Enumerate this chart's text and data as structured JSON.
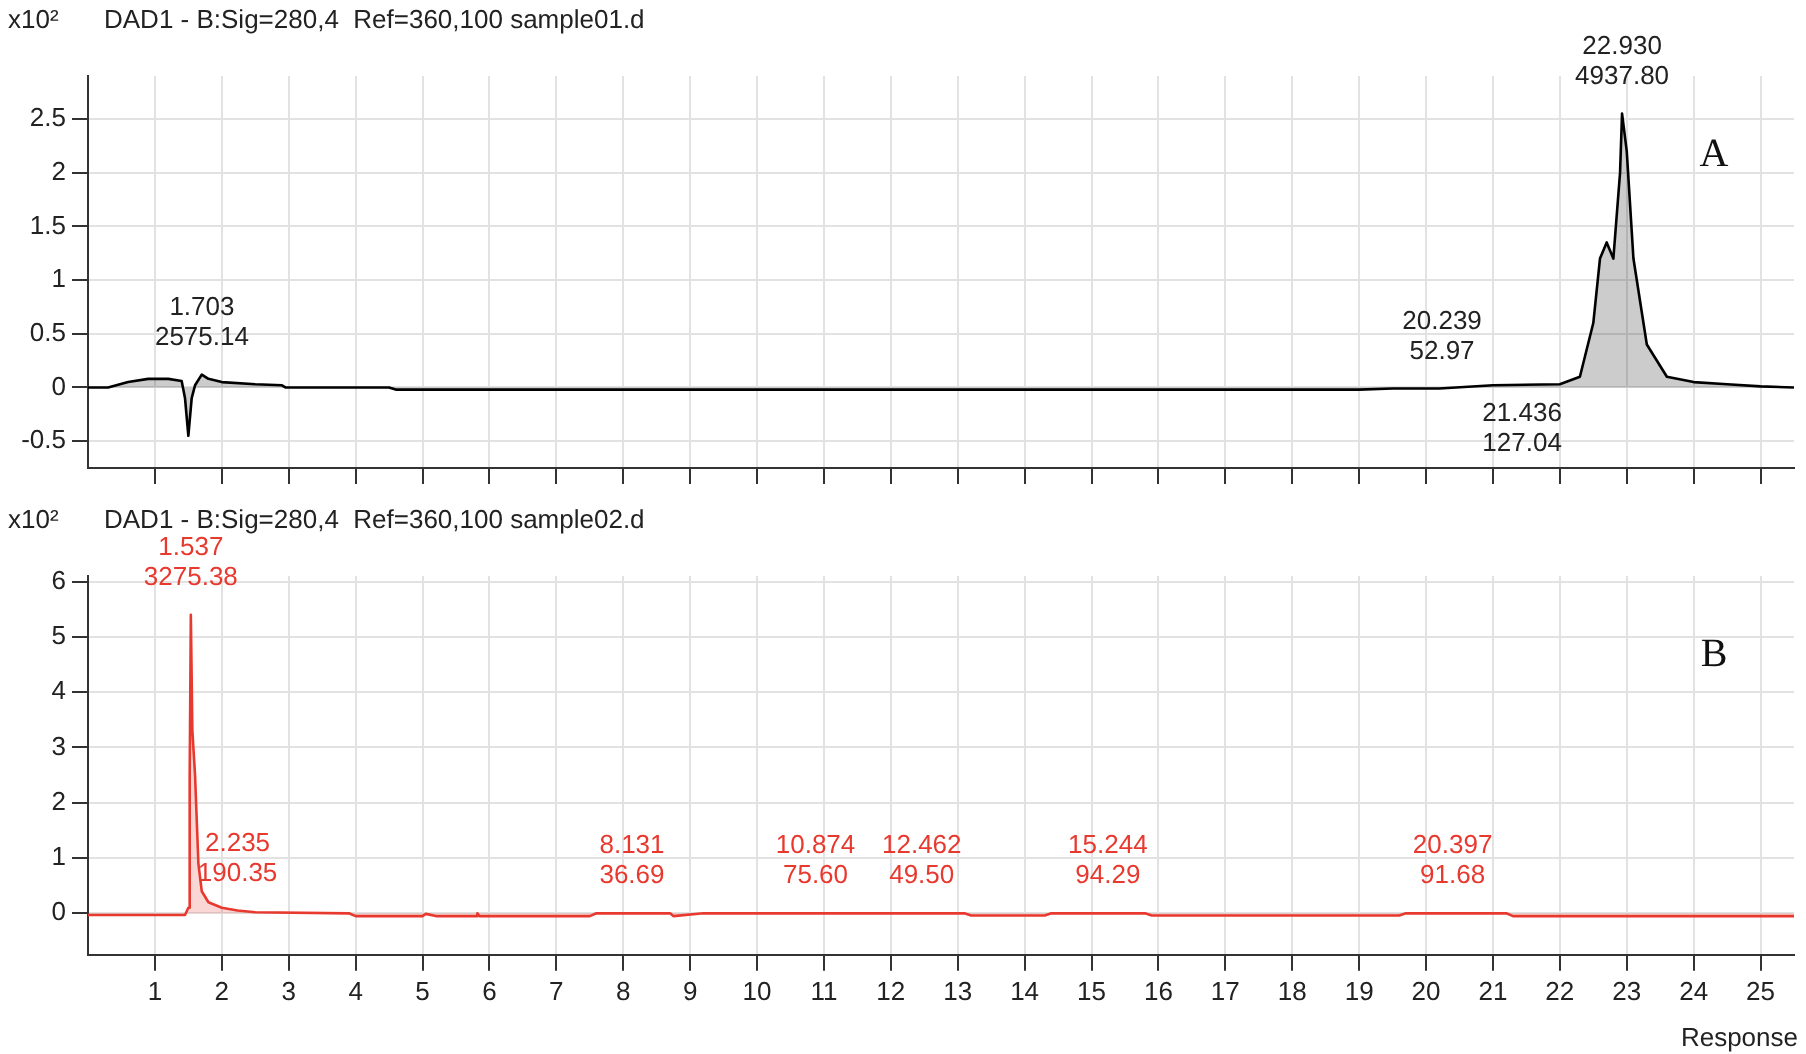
{
  "chart_data": [
    {
      "type": "area",
      "title": "DAD1 - B:Sig=280,4  Ref=360,100 sample01.d",
      "ylabel": "x10²",
      "xlim": [
        0,
        25.5
      ],
      "ylim": [
        -0.75,
        2.9
      ],
      "xticks": [
        1,
        2,
        3,
        4,
        5,
        6,
        7,
        8,
        9,
        10,
        11,
        12,
        13,
        14,
        15,
        16,
        17,
        18,
        19,
        20,
        21,
        22,
        23,
        24,
        25
      ],
      "yticks": [
        -0.5,
        0,
        0.5,
        1,
        1.5,
        2,
        2.5
      ],
      "tick_labels": "y",
      "grid": true,
      "series": [
        {
          "color": "#000000",
          "x": [
            0,
            0.3,
            0.6,
            0.9,
            1.2,
            1.4,
            1.45,
            1.5,
            1.55,
            1.6,
            1.7,
            1.8,
            2.0,
            2.5,
            2.9,
            2.95,
            4.5,
            4.6,
            19,
            19.5,
            20.2,
            21,
            22,
            22.3,
            22.5,
            22.6,
            22.7,
            22.8,
            22.9,
            22.93,
            23.0,
            23.1,
            23.3,
            23.6,
            24,
            24.5,
            25,
            25.5
          ],
          "values": [
            0,
            0,
            0.05,
            0.08,
            0.08,
            0.06,
            -0.1,
            -0.45,
            -0.1,
            0.02,
            0.12,
            0.08,
            0.05,
            0.03,
            0.02,
            0,
            0,
            -0.02,
            -0.02,
            -0.01,
            -0.01,
            0.02,
            0.03,
            0.1,
            0.6,
            1.2,
            1.35,
            1.2,
            2.0,
            2.55,
            2.2,
            1.2,
            0.4,
            0.1,
            0.05,
            0.03,
            0.01,
            0
          ]
        }
      ],
      "annotations": [
        {
          "text": "1.703\n2575.14",
          "x": 1.703,
          "y": 0.12
        },
        {
          "text": "20.239\n52.97",
          "x": 20.239,
          "y": -0.01
        },
        {
          "text": "21.436\n127.04",
          "x": 21.436,
          "y": 0.02
        },
        {
          "text": "22.930\n4937.80",
          "x": 22.93,
          "y": 2.55
        },
        "A"
      ]
    },
    {
      "type": "area",
      "title": "DAD1 - B:Sig=280,4  Ref=360,100 sample02.d",
      "ylabel": "x10²",
      "xlabel": "Response",
      "xlim": [
        0,
        25.5
      ],
      "ylim": [
        -0.75,
        6.1
      ],
      "xticks": [
        1,
        2,
        3,
        4,
        5,
        6,
        7,
        8,
        9,
        10,
        11,
        12,
        13,
        14,
        15,
        16,
        17,
        18,
        19,
        20,
        21,
        22,
        23,
        24,
        25
      ],
      "yticks": [
        0,
        1,
        2,
        3,
        4,
        5,
        6
      ],
      "grid": true,
      "series": [
        {
          "color": "#e8392f",
          "x": [
            0,
            1.45,
            1.5,
            1.52,
            1.537,
            1.56,
            1.6,
            1.65,
            1.7,
            1.8,
            2.0,
            2.235,
            2.5,
            3.9,
            4.0,
            5.0,
            5.05,
            5.2,
            5.8,
            5.82,
            5.85,
            7.5,
            7.6,
            8.7,
            8.75,
            9.2,
            13.1,
            13.2,
            14.3,
            14.4,
            15.8,
            15.9,
            19.6,
            19.7,
            21.2,
            21.3,
            25.5
          ],
          "values": [
            -0.03,
            -0.03,
            0.1,
            2.5,
            5.4,
            3.3,
            2.5,
            0.9,
            0.4,
            0.2,
            0.1,
            0.05,
            0.02,
            0,
            -0.05,
            -0.05,
            -0.01,
            -0.05,
            -0.05,
            0,
            -0.05,
            -0.05,
            0,
            0,
            -0.05,
            0,
            0,
            -0.04,
            -0.04,
            0,
            0,
            -0.04,
            -0.04,
            0,
            0,
            -0.05,
            -0.05
          ]
        }
      ],
      "annotations": [
        {
          "text": "1.537\n3275.38",
          "x": 1.537,
          "y": 5.4
        },
        {
          "text": "2.235\n190.35",
          "x": 2.235,
          "y": 0.05
        },
        {
          "text": "8.131\n36.69",
          "x": 8.131,
          "y": 0
        },
        {
          "text": "10.874\n75.60",
          "x": 10.874,
          "y": 0
        },
        {
          "text": "12.462\n49.50",
          "x": 12.462,
          "y": 0
        },
        {
          "text": "15.244\n94.29",
          "x": 15.244,
          "y": 0
        },
        {
          "text": "20.397\n91.68",
          "x": 20.397,
          "y": 0
        },
        "B"
      ]
    }
  ]
}
